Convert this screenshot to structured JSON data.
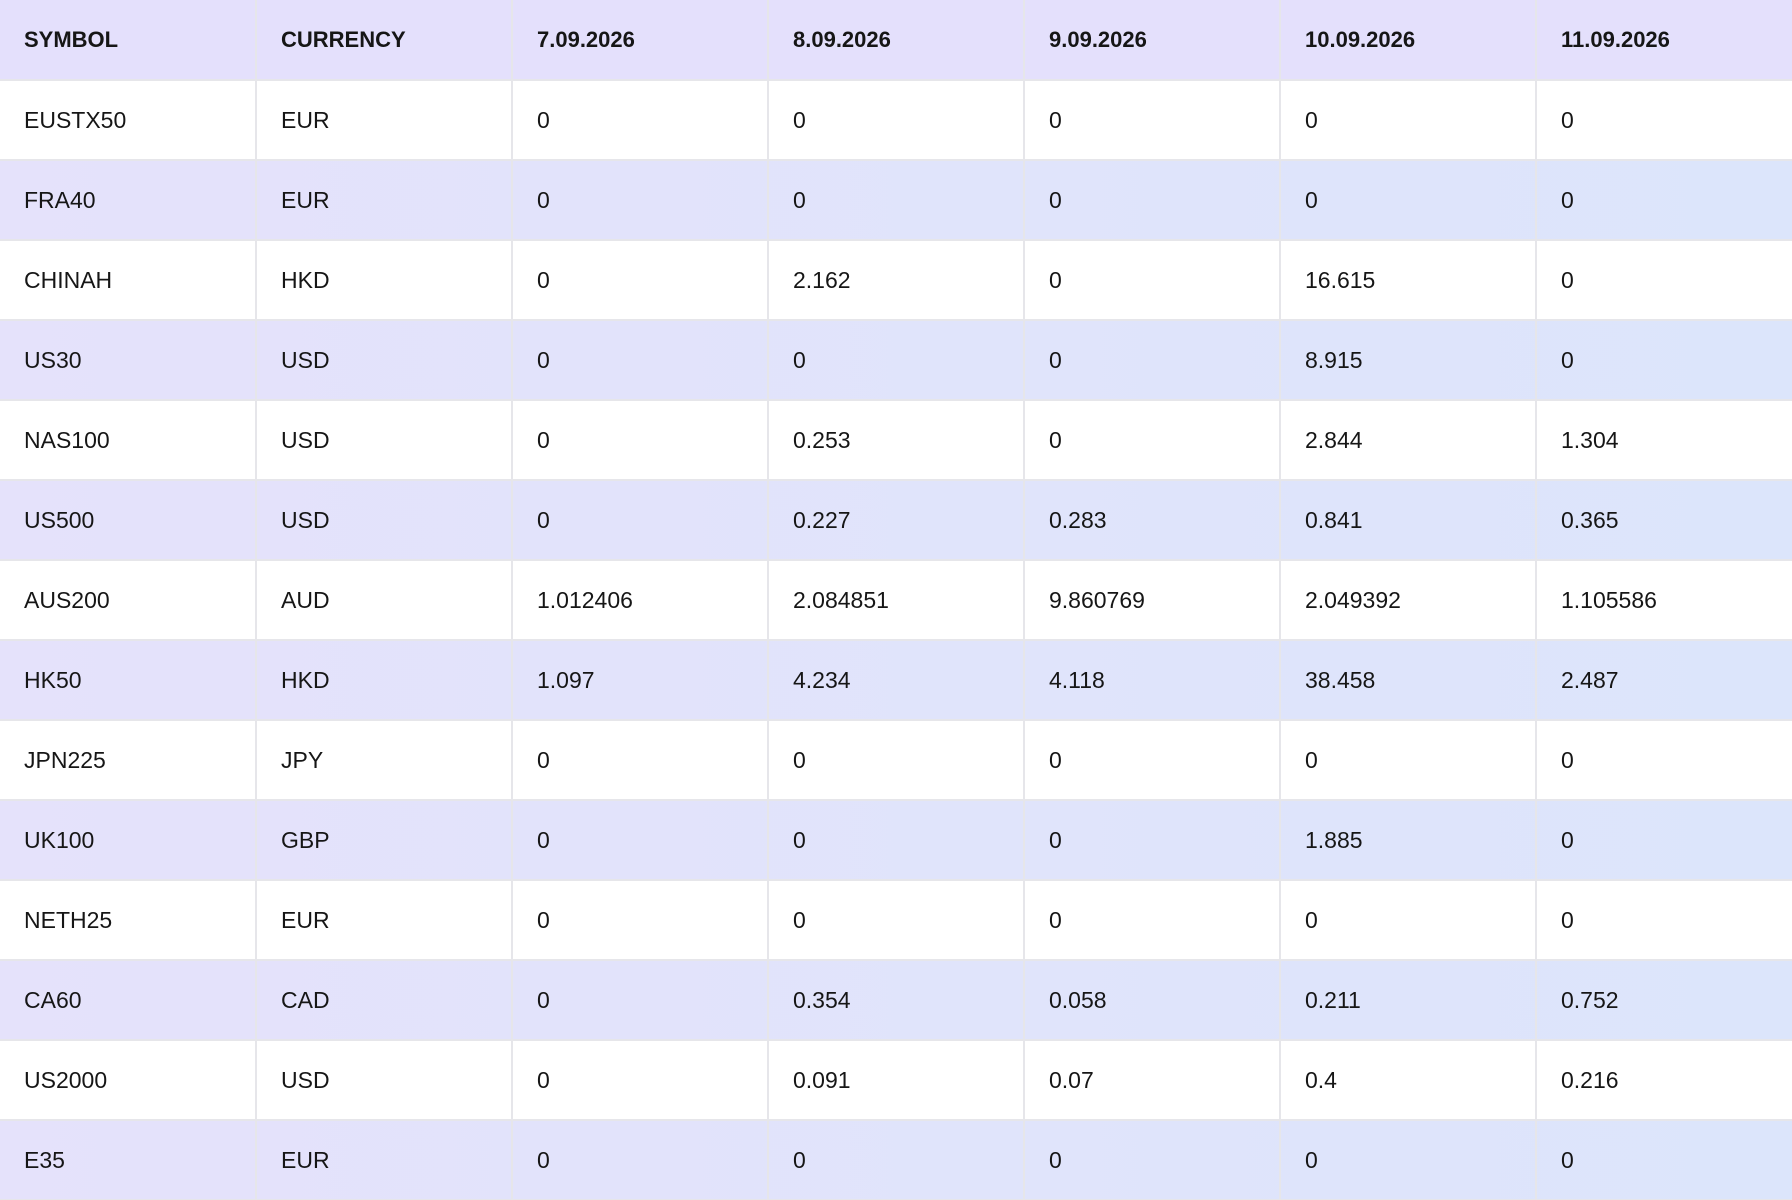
{
  "table": {
    "header": [
      "SYMBOL",
      "CURRENCY",
      "7.09.2026",
      "8.09.2026",
      "9.09.2026",
      "10.09.2026",
      "11.09.2026"
    ],
    "rows": [
      [
        "EUSTX50",
        "EUR",
        "0",
        "0",
        "0",
        "0",
        "0"
      ],
      [
        "FRA40",
        "EUR",
        "0",
        "0",
        "0",
        "0",
        "0"
      ],
      [
        "CHINAH",
        "HKD",
        "0",
        "2.162",
        "0",
        "16.615",
        "0"
      ],
      [
        "US30",
        "USD",
        "0",
        "0",
        "0",
        "8.915",
        "0"
      ],
      [
        "NAS100",
        "USD",
        "0",
        "0.253",
        "0",
        "2.844",
        "1.304"
      ],
      [
        "US500",
        "USD",
        "0",
        "0.227",
        "0.283",
        "0.841",
        "0.365"
      ],
      [
        "AUS200",
        "AUD",
        "1.012406",
        "2.084851",
        "9.860769",
        "2.049392",
        "1.105586"
      ],
      [
        "HK50",
        "HKD",
        "1.097",
        "4.234",
        "4.118",
        "38.458",
        "2.487"
      ],
      [
        "JPN225",
        "JPY",
        "0",
        "0",
        "0",
        "0",
        "0"
      ],
      [
        "UK100",
        "GBP",
        "0",
        "0",
        "0",
        "1.885",
        "0"
      ],
      [
        "NETH25",
        "EUR",
        "0",
        "0",
        "0",
        "0",
        "0"
      ],
      [
        "CA60",
        "CAD",
        "0",
        "0.354",
        "0.058",
        "0.211",
        "0.752"
      ],
      [
        "US2000",
        "USD",
        "0",
        "0.091",
        "0.07",
        "0.4",
        "0.216"
      ],
      [
        "E35",
        "EUR",
        "0",
        "0",
        "0",
        "0",
        "0"
      ]
    ]
  }
}
